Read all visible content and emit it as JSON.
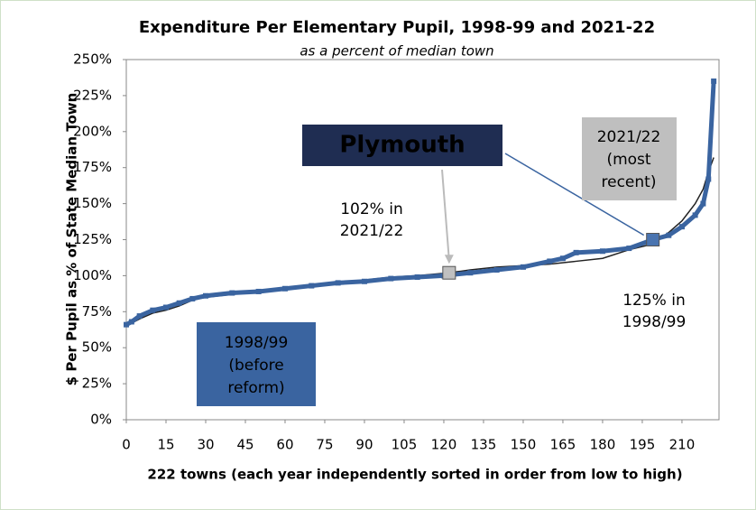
{
  "chart_data": {
    "type": "line",
    "title": "Expenditure Per Elementary Pupil, 1998-99 and 2021-22",
    "subtitle": "as a percent of median town",
    "y_label": "$ Per Pupil as % of State Median Town",
    "x_label": "222 towns (each year independently sorted in order from low to high)",
    "xlim": [
      0,
      224
    ],
    "xticks": [
      0,
      15,
      30,
      45,
      60,
      75,
      90,
      105,
      120,
      135,
      150,
      165,
      180,
      195,
      210
    ],
    "ylim": [
      0,
      250
    ],
    "yticks": [
      {
        "value": 0,
        "label": "0%"
      },
      {
        "value": 25,
        "label": "25%"
      },
      {
        "value": 50,
        "label": "50%"
      },
      {
        "value": 75,
        "label": "75%"
      },
      {
        "value": 100,
        "label": "100%"
      },
      {
        "value": 125,
        "label": "125%"
      },
      {
        "value": 150,
        "label": "150%"
      },
      {
        "value": 175,
        "label": "175%"
      },
      {
        "value": 200,
        "label": "200%"
      },
      {
        "value": 225,
        "label": "225%"
      },
      {
        "value": 250,
        "label": "250%"
      }
    ],
    "series": [
      {
        "color": "#222222",
        "marker": "line",
        "x": [
          0,
          5,
          10,
          15,
          20,
          25,
          30,
          40,
          50,
          60,
          70,
          80,
          90,
          100,
          110,
          122,
          130,
          140,
          150,
          160,
          170,
          180,
          190,
          199,
          205,
          210,
          215,
          218,
          220,
          222
        ],
        "values": [
          65,
          70,
          74,
          76,
          79,
          83,
          85,
          87,
          89,
          91,
          93,
          95,
          97,
          99,
          100,
          102,
          104,
          106,
          107,
          108,
          110,
          112,
          118,
          122,
          130,
          138,
          150,
          160,
          172,
          182
        ]
      },
      {
        "color": "#3a64a0",
        "marker": "square",
        "x": [
          0,
          2,
          5,
          10,
          15,
          20,
          25,
          30,
          40,
          50,
          60,
          70,
          80,
          90,
          100,
          110,
          120,
          130,
          140,
          150,
          160,
          165,
          170,
          180,
          190,
          199,
          205,
          210,
          215,
          218,
          220,
          222
        ],
        "values": [
          66,
          68,
          72,
          76,
          78,
          81,
          84,
          86,
          88,
          89,
          91,
          93,
          95,
          96,
          98,
          99,
          100,
          102,
          104,
          106,
          110,
          112,
          116,
          117,
          119,
          125,
          128,
          134,
          142,
          150,
          167,
          235
        ]
      }
    ],
    "highlights": [
      {
        "x": 122,
        "value": 102,
        "color": "#c0c0c0",
        "label": [
          "102% in",
          "2021/22"
        ]
      },
      {
        "x": 199,
        "value": 125,
        "color": "#4a74b0",
        "label": [
          "125% in",
          "1998/99"
        ]
      }
    ],
    "callout": "Plymouth",
    "box_recent": [
      "2021/22",
      "(most",
      "recent)"
    ],
    "box_before": [
      "1998/99",
      "(before",
      "reform)"
    ]
  }
}
